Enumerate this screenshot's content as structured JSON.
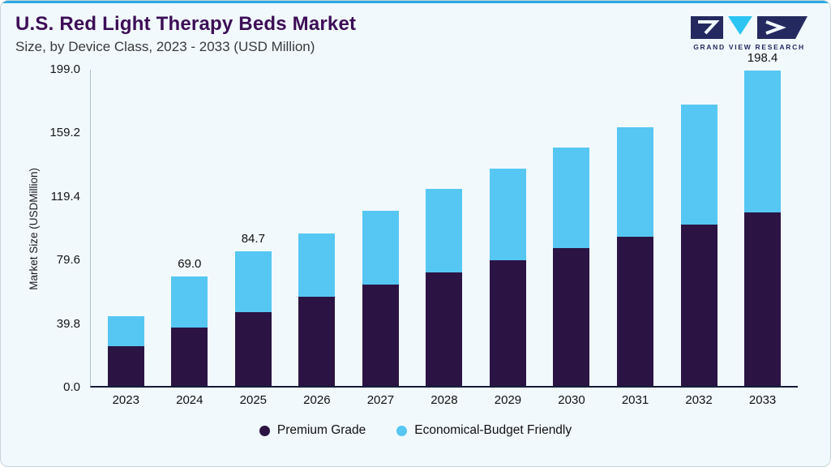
{
  "header": {
    "title": "U.S. Red Light Therapy Beds Market",
    "subtitle": "Size, by Device Class, 2023 - 2033 (USD Million)",
    "logo_text": "GRAND VIEW RESEARCH"
  },
  "colors": {
    "accent": "#2aa9e0",
    "title": "#3c0e56",
    "premium": "#2b1444",
    "economical": "#56c7f2"
  },
  "chart_data": {
    "type": "bar",
    "stacked": true,
    "title": "U.S. Red Light Therapy Beds Market Size, by Device Class, 2023 - 2033 (USD Million)",
    "xlabel": "",
    "ylabel": "Market Size (USDMillion)",
    "ylim": [
      0,
      199.0
    ],
    "yticks": [
      "199.0",
      "159.2",
      "119.4",
      "79.6",
      "39.8",
      "0.0"
    ],
    "grid": false,
    "legend_position": "bottom",
    "categories": [
      "2023",
      "2024",
      "2025",
      "2026",
      "2027",
      "2028",
      "2029",
      "2030",
      "2031",
      "2032",
      "2033"
    ],
    "series": [
      {
        "name": "Premium Grade",
        "color": "#2b1444",
        "values": [
          25.0,
          37.0,
          46.5,
          56.0,
          64.0,
          71.5,
          79.0,
          87.0,
          94.0,
          101.5,
          109.0
        ]
      },
      {
        "name": "Economical-Budget Friendly",
        "color": "#56c7f2",
        "values": [
          19.0,
          32.0,
          38.2,
          40.0,
          46.0,
          52.5,
          58.0,
          63.0,
          69.0,
          75.5,
          89.4
        ]
      }
    ],
    "totals": [
      44.0,
      69.0,
      84.7,
      96.0,
      110.0,
      124.0,
      137.0,
      150.0,
      163.0,
      177.0,
      198.4
    ],
    "bar_labels": [
      "",
      "69.0",
      "84.7",
      "",
      "",
      "",
      "",
      "",
      "",
      "",
      "198.4"
    ]
  }
}
